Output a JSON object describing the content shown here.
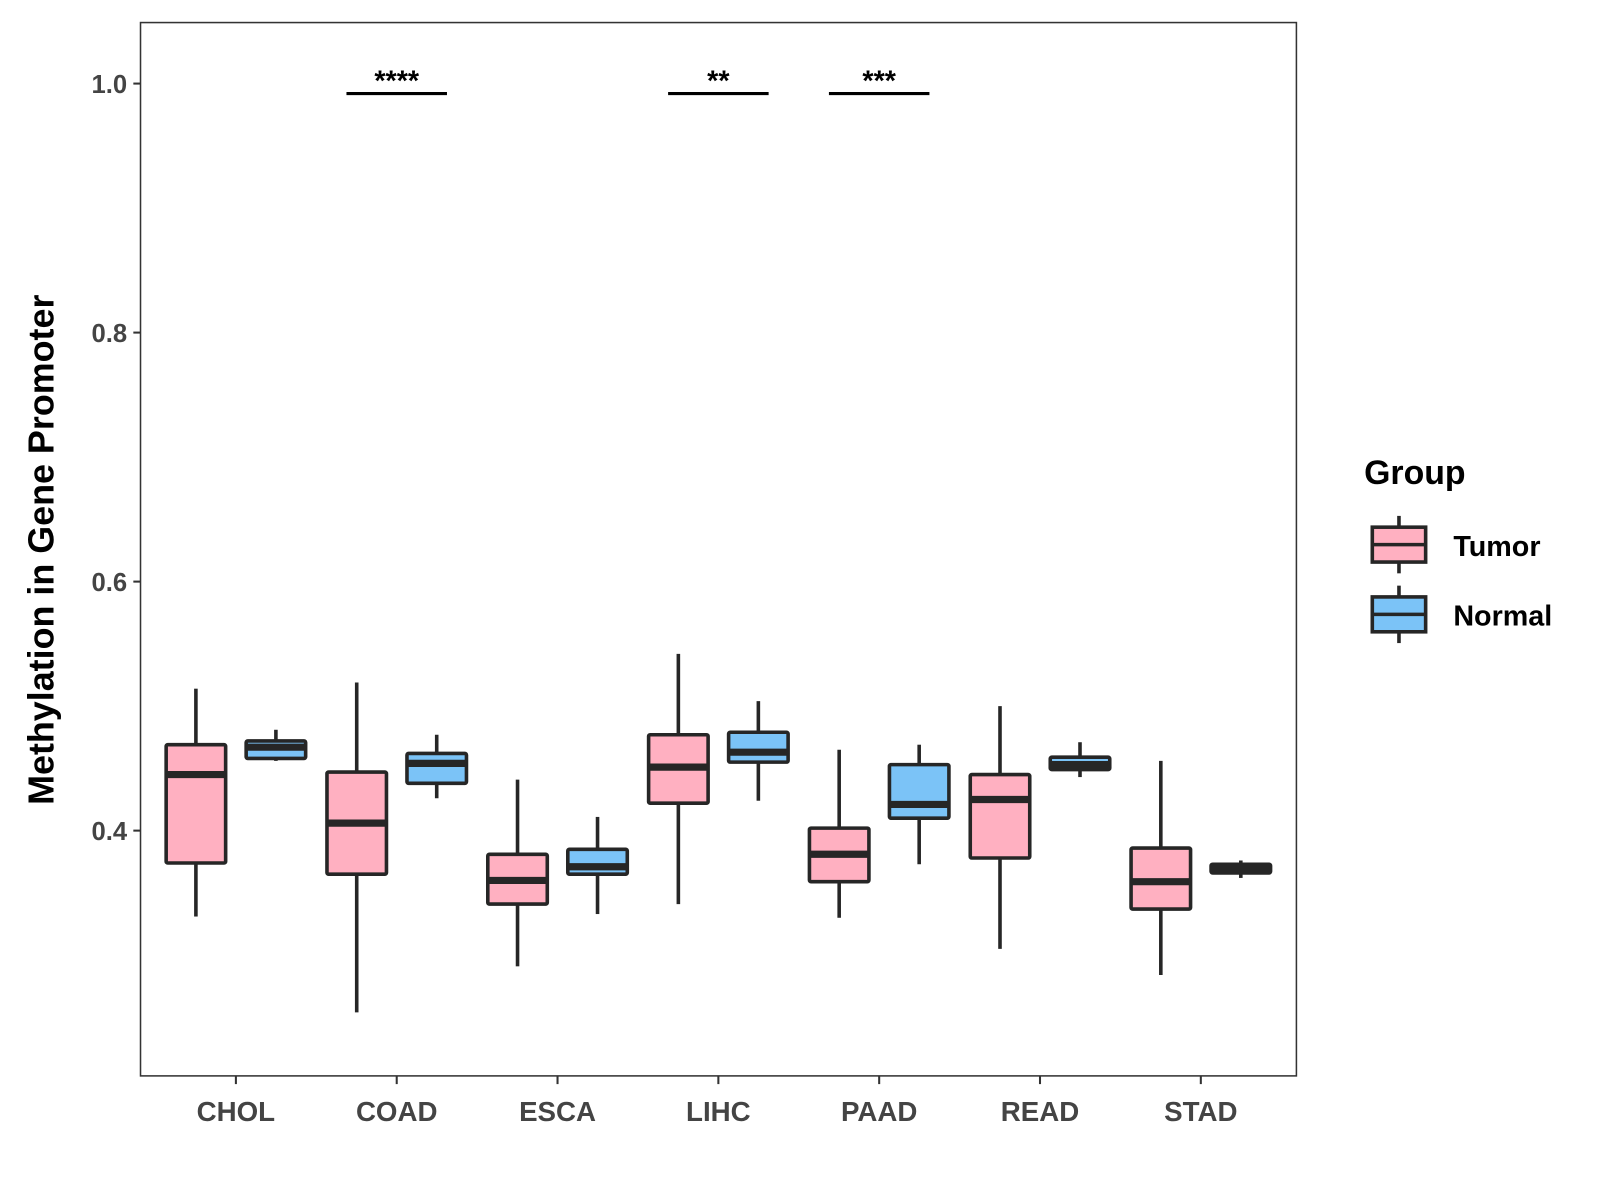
{
  "chart_data": {
    "type": "boxplot",
    "title": "",
    "xlabel": "",
    "ylabel": "Methylation in Gene Promoter",
    "ylim": [
      0.203,
      1.049
    ],
    "yticks": [
      0.4,
      0.6,
      0.8,
      1.0
    ],
    "ytick_labels": [
      "0.4",
      "0.6",
      "0.8",
      "1.0"
    ],
    "grid": false,
    "categories": [
      "CHOL",
      "COAD",
      "ESCA",
      "LIHC",
      "PAAD",
      "READ",
      "STAD"
    ],
    "legend": {
      "title": "Group",
      "placement": "right",
      "entries": [
        "Tumor",
        "Normal"
      ]
    },
    "colors": {
      "Tumor": "#FFB0C1",
      "Normal": "#7BC3F7",
      "outline": "#262626"
    },
    "series": [
      {
        "name": "Tumor",
        "stats": [
          {
            "low": 0.331,
            "q1": 0.374,
            "median": 0.445,
            "q3": 0.469,
            "high": 0.514
          },
          {
            "low": 0.254,
            "q1": 0.365,
            "median": 0.406,
            "q3": 0.447,
            "high": 0.519
          },
          {
            "low": 0.291,
            "q1": 0.341,
            "median": 0.36,
            "q3": 0.381,
            "high": 0.441
          },
          {
            "low": 0.341,
            "q1": 0.422,
            "median": 0.451,
            "q3": 0.477,
            "high": 0.542
          },
          {
            "low": 0.33,
            "q1": 0.359,
            "median": 0.381,
            "q3": 0.402,
            "high": 0.465
          },
          {
            "low": 0.305,
            "q1": 0.378,
            "median": 0.425,
            "q3": 0.445,
            "high": 0.5
          },
          {
            "low": 0.284,
            "q1": 0.337,
            "median": 0.359,
            "q3": 0.386,
            "high": 0.456
          }
        ]
      },
      {
        "name": "Normal",
        "stats": [
          {
            "low": 0.456,
            "q1": 0.458,
            "median": 0.467,
            "q3": 0.472,
            "high": 0.481
          },
          {
            "low": 0.426,
            "q1": 0.438,
            "median": 0.454,
            "q3": 0.462,
            "high": 0.477
          },
          {
            "low": 0.333,
            "q1": 0.365,
            "median": 0.371,
            "q3": 0.385,
            "high": 0.411
          },
          {
            "low": 0.424,
            "q1": 0.455,
            "median": 0.463,
            "q3": 0.479,
            "high": 0.504
          },
          {
            "low": 0.373,
            "q1": 0.41,
            "median": 0.421,
            "q3": 0.453,
            "high": 0.469
          },
          {
            "low": 0.443,
            "q1": 0.449,
            "median": 0.453,
            "q3": 0.459,
            "high": 0.471
          },
          {
            "low": 0.362,
            "q1": 0.366,
            "median": 0.37,
            "q3": 0.373,
            "high": 0.376
          }
        ]
      }
    ],
    "annotations": [
      {
        "category": "COAD",
        "label": "****",
        "y": 0.992
      },
      {
        "category": "LIHC",
        "label": "**",
        "y": 0.992
      },
      {
        "category": "PAAD",
        "label": "***",
        "y": 0.992
      }
    ]
  }
}
